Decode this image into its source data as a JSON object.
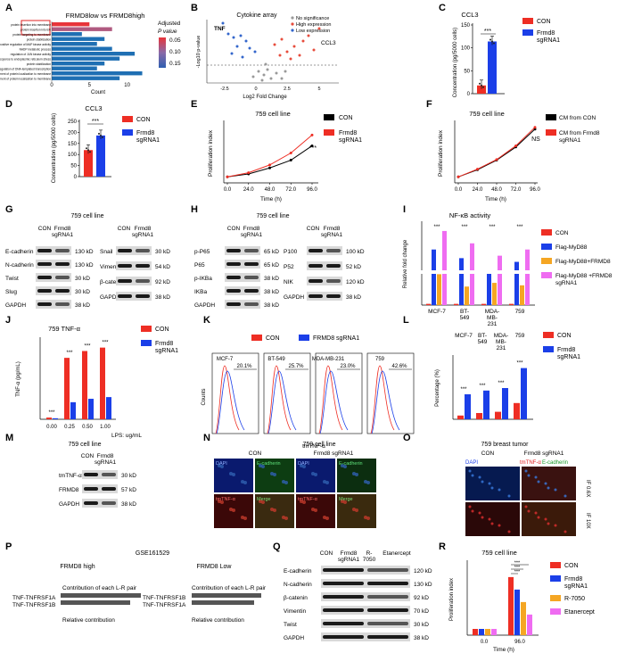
{
  "panel_letters": [
    "A",
    "B",
    "C",
    "D",
    "E",
    "F",
    "G",
    "H",
    "I",
    "J",
    "K",
    "L",
    "M",
    "N",
    "O",
    "P",
    "Q",
    "R"
  ],
  "A": {
    "title": "FRMD8low vs FRMD8high",
    "xlabel": "Count",
    "legend_title": "Adjusted",
    "legend_title2": "P value",
    "legend_ticks": [
      "0.05",
      "0.10",
      "0.15"
    ],
    "xticks": [
      "0",
      "5",
      "10"
    ]
  },
  "B": {
    "title": "Cytokine array",
    "ylabel": "-Log10 p-value",
    "xlabel": "Log2 Fold Change",
    "xticks": [
      "-2.5",
      "0",
      "2.5",
      "5"
    ],
    "legend": [
      "No significance",
      "High expression",
      "Low expression"
    ],
    "labels": [
      "TNF",
      "CCL3"
    ]
  },
  "C": {
    "title": "CCL3",
    "ylabel": "Concentration (pg/5000 cells)",
    "yticks": [
      "0",
      "50",
      "100",
      "150"
    ],
    "sig": "***"
  },
  "D": {
    "title": "CCL3",
    "ylabel": "Concentration (pg/5000 cells)",
    "yticks": [
      "0",
      "50",
      "100",
      "150",
      "200",
      "250"
    ],
    "sig": "***"
  },
  "legend_con_frmd8": {
    "con": "CON",
    "frmd8_1": "Frmd8",
    "frmd8_2": "sgRNA1"
  },
  "E": {
    "title": "759 cell line",
    "ylabel": "Proliferation index",
    "xlabel": "Time (h)",
    "xticks": [
      "0.0",
      "24.0",
      "48.0",
      "72.0",
      "96.0"
    ],
    "sig": "***"
  },
  "F": {
    "title": "759 cell line",
    "ylabel": "Proliferation index",
    "xlabel": "Time (h)",
    "xticks": [
      "0.0",
      "24.0",
      "48.0",
      "72.0",
      "96.0"
    ],
    "sig": "NS",
    "legend": [
      "CM from CON",
      "CM from Frmd8",
      "sgRNA1"
    ]
  },
  "G": {
    "title": "759 cell line",
    "col1": "CON",
    "col2a": "Frmd8",
    "col2b": "sgRNA1",
    "left_rows": [
      [
        "E-cadherin",
        "130 kD"
      ],
      [
        "N-cadherin",
        "130 kD"
      ],
      [
        "Twist",
        "30 kD"
      ],
      [
        "Slug",
        "30 kD"
      ],
      [
        "GAPDH",
        "38 kD"
      ]
    ],
    "right_rows": [
      [
        "Snail",
        "30 kD"
      ],
      [
        "Vimentin",
        "54 kD"
      ],
      [
        "β-catenin",
        "92 kD"
      ],
      [
        "GAPDH",
        "38 kD"
      ]
    ]
  },
  "H": {
    "title": "759 cell line",
    "col1": "CON",
    "col2a": "Frmd8",
    "col2b": "sgRNA1",
    "left_rows": [
      [
        "p-P65",
        "65 kD"
      ],
      [
        "P65",
        "65 kD"
      ],
      [
        "p-IKBa",
        "38 kD"
      ],
      [
        "IKBa",
        "38 kD"
      ],
      [
        "GAPDH",
        "38 kD"
      ]
    ],
    "right_rows": [
      [
        "P100",
        "100 kD"
      ],
      [
        "P52",
        "52 kD"
      ],
      [
        "NIK",
        "120 kD"
      ],
      [
        "GAPDH",
        "38 kD"
      ]
    ]
  },
  "I": {
    "title": "NF-κB activity",
    "ylabel": "Relative fold change",
    "cats": [
      "MCF-7",
      "BT-\n549",
      "MDA-\nMB-\n231",
      "759"
    ],
    "legend": [
      "CON",
      "Flag-MyD88",
      "Flag-MyD88+FRMD8",
      "Flag-MyD88 +FRMD8",
      "sgRNA1"
    ],
    "sig": "***"
  },
  "J": {
    "title": "759 TNF-α",
    "ylabel": "TNF-α (pg/mL)",
    "xticks": [
      "0.00",
      "0.25",
      "0.50",
      "1.00"
    ],
    "xsuffix": "LPS: ug/mL",
    "sig": "***"
  },
  "K": {
    "legend": [
      "CON",
      "FRMD8 sgRNA1"
    ],
    "ylabel": "Counts",
    "xlabel": "tmTNF-α",
    "panels": [
      [
        "MCF-7",
        "20.1%"
      ],
      [
        "BT-549",
        "25.7%"
      ],
      [
        "MDA-MB-231",
        "23.0%"
      ],
      [
        "759",
        "42.6%"
      ]
    ]
  },
  "L": {
    "cats": [
      "MCF-7",
      "BT-\n549",
      "MDA-\nMB-\n231",
      "759"
    ],
    "ylabel": "Percentage (%)",
    "legend": [
      "CON",
      "Frmd8",
      "sgRNA1"
    ],
    "sig": "***"
  },
  "M": {
    "title": "759 cell line",
    "col1": "CON",
    "col2a": "Frmd8",
    "col2b": "sgRNA1",
    "rows": [
      [
        "tmTNF-α",
        "30 kD"
      ],
      [
        "FRMD8",
        "57 kD"
      ],
      [
        "GAPDH",
        "38 kD"
      ]
    ]
  },
  "N": {
    "title": "759 cell line",
    "con": "CON",
    "frmd8": "Frmd8 sgRNA1",
    "labels_top": [
      "DAPI",
      "E-cadherin",
      "DAPI",
      "E-cadherin"
    ],
    "labels_bot": [
      "tmTNF-α",
      "Merge",
      "tmTNF-α",
      "Merge"
    ]
  },
  "O": {
    "title": "759 breast tumor",
    "con": "CON",
    "frmd8": "Frmd8 sgRNA1",
    "labels": [
      "DAPI",
      "tmTNF-α",
      "E-cadherin"
    ],
    "side": [
      "IF 0.6X",
      "IF 10X"
    ]
  },
  "P": {
    "title": "GSE161529",
    "high": "FRMD8 high",
    "low": "FRMD8 Low",
    "contrib": "Contribution of each L-R pair",
    "rel": "Relative contribution",
    "pairs": [
      "TNF-TNFRSF1A",
      "TNF-TNFRSF1B"
    ],
    "pairs_low": [
      "TNF-TNFRSF1B",
      "TNF-TNFRSF1A"
    ]
  },
  "Q": {
    "cols": [
      "CON",
      "Frmd8",
      "sgRNA1",
      "R-",
      "7050",
      "Etanercept"
    ],
    "rows": [
      [
        "E-cadherin",
        "120 kD"
      ],
      [
        "N-cadherin",
        "130 kD"
      ],
      [
        "β-catenin",
        "92 kD"
      ],
      [
        "Vimentin",
        "70 kD"
      ],
      [
        "Twist",
        "30 kD"
      ],
      [
        "GAPDH",
        "38 kD"
      ]
    ]
  },
  "R": {
    "title": "759 cell line",
    "ylabel": "Proliferation index",
    "xlabel": "Time (h)",
    "xticks": [
      "0.0",
      "96.0"
    ],
    "legend": [
      "CON",
      "Frmd8",
      "sgRNA1",
      "R-7050",
      "Etanercept"
    ],
    "sig": "***"
  },
  "colors": {
    "con": "#ee2e24",
    "frmd8": "#1b3fe8",
    "orange": "#f5a623",
    "pink": "#ef6cf1",
    "black": "#000000",
    "blue": "#1f6fb3"
  },
  "chart_data": [
    {
      "id": "A",
      "type": "bar",
      "orientation": "horizontal",
      "categories": [
        "protein insertion into membrane",
        "protein insertion into ER",
        "protein targeting to membrane",
        "protein stabilization",
        "positive regulation of MAP kinase activity",
        "NADP metabolic process",
        "regulation of JUN kinase activity",
        "response to endoplasmic reticulum stress",
        "protein stabilization",
        "positive regulation of DNA-templated transcription",
        "establishment of protein localization to membrane",
        "establishment of protein localization to membrane"
      ],
      "values": [
        5,
        8,
        4,
        7,
        6,
        8,
        11,
        9,
        7,
        6,
        12,
        9
      ],
      "padj": [
        0.05,
        0.08,
        0.14,
        0.15,
        0.15,
        0.15,
        0.15,
        0.15,
        0.15,
        0.15,
        0.15,
        0.15
      ],
      "xlim": [
        0,
        13
      ]
    },
    {
      "id": "C",
      "type": "bar",
      "categories": [
        "CON",
        "Frmd8 sgRNA1"
      ],
      "values": [
        18,
        114
      ],
      "ylim": [
        0,
        150
      ]
    },
    {
      "id": "D",
      "type": "bar",
      "categories": [
        "CON",
        "Frmd8 sgRNA1"
      ],
      "values": [
        120,
        186
      ],
      "ylim": [
        0,
        250
      ]
    },
    {
      "id": "E",
      "type": "line",
      "x": [
        0,
        24,
        48,
        72,
        96
      ],
      "series": [
        {
          "name": "CON",
          "values": [
            1,
            1.5,
            2.5,
            3.8,
            6.2
          ]
        },
        {
          "name": "Frmd8 sgRNA1",
          "values": [
            1,
            1.7,
            3.0,
            5.0,
            8.0
          ]
        }
      ],
      "ylim": [
        0,
        10
      ]
    },
    {
      "id": "F",
      "type": "line",
      "x": [
        0,
        24,
        48,
        72,
        96
      ],
      "series": [
        {
          "name": "CM from CON",
          "values": [
            1,
            2.2,
            3.8,
            6.0,
            9.0
          ]
        },
        {
          "name": "CM from Frmd8 sgRNA1",
          "values": [
            1,
            2.3,
            3.9,
            6.2,
            9.3
          ]
        }
      ],
      "ylim": [
        0,
        10
      ]
    },
    {
      "id": "I",
      "type": "bar",
      "categories": [
        "MCF-7",
        "BT-549",
        "MDA-MB-231",
        "759"
      ],
      "series": [
        {
          "name": "CON",
          "values": [
            1,
            1,
            1,
            1
          ]
        },
        {
          "name": "Flag-MyD88",
          "values": [
            45,
            38,
            28,
            35
          ]
        },
        {
          "name": "Flag-MyD88+FRMD8",
          "values": [
            25,
            15,
            18,
            16
          ]
        },
        {
          "name": "Flag-MyD88 +FRMD8 sgRNA1",
          "values": [
            60,
            50,
            40,
            45
          ]
        }
      ]
    },
    {
      "id": "J",
      "type": "bar",
      "categories": [
        "0.00",
        "0.25",
        "0.50",
        "1.00"
      ],
      "series": [
        {
          "name": "CON",
          "values": [
            5,
            180,
            200,
            210
          ]
        },
        {
          "name": "Frmd8 sgRNA1",
          "values": [
            3,
            50,
            60,
            65
          ]
        }
      ]
    },
    {
      "id": "L",
      "type": "bar",
      "categories": [
        "MCF-7",
        "BT-549",
        "MDA-MB-231",
        "759"
      ],
      "series": [
        {
          "name": "CON",
          "values": [
            3,
            5,
            6,
            13
          ]
        },
        {
          "name": "Frmd8 sgRNA1",
          "values": [
            20,
            23,
            25,
            41
          ]
        }
      ],
      "ylim": [
        0,
        50
      ]
    },
    {
      "id": "R",
      "type": "bar",
      "categories": [
        "0.0",
        "96.0"
      ],
      "series": [
        {
          "name": "CON",
          "values": [
            1,
            9.3
          ]
        },
        {
          "name": "Frmd8 sgRNA1",
          "values": [
            1,
            7.3
          ]
        },
        {
          "name": "R-7050",
          "values": [
            1,
            5.3
          ]
        },
        {
          "name": "Etanercept",
          "values": [
            1,
            3.3
          ]
        }
      ],
      "ylim": [
        0,
        12
      ]
    }
  ]
}
